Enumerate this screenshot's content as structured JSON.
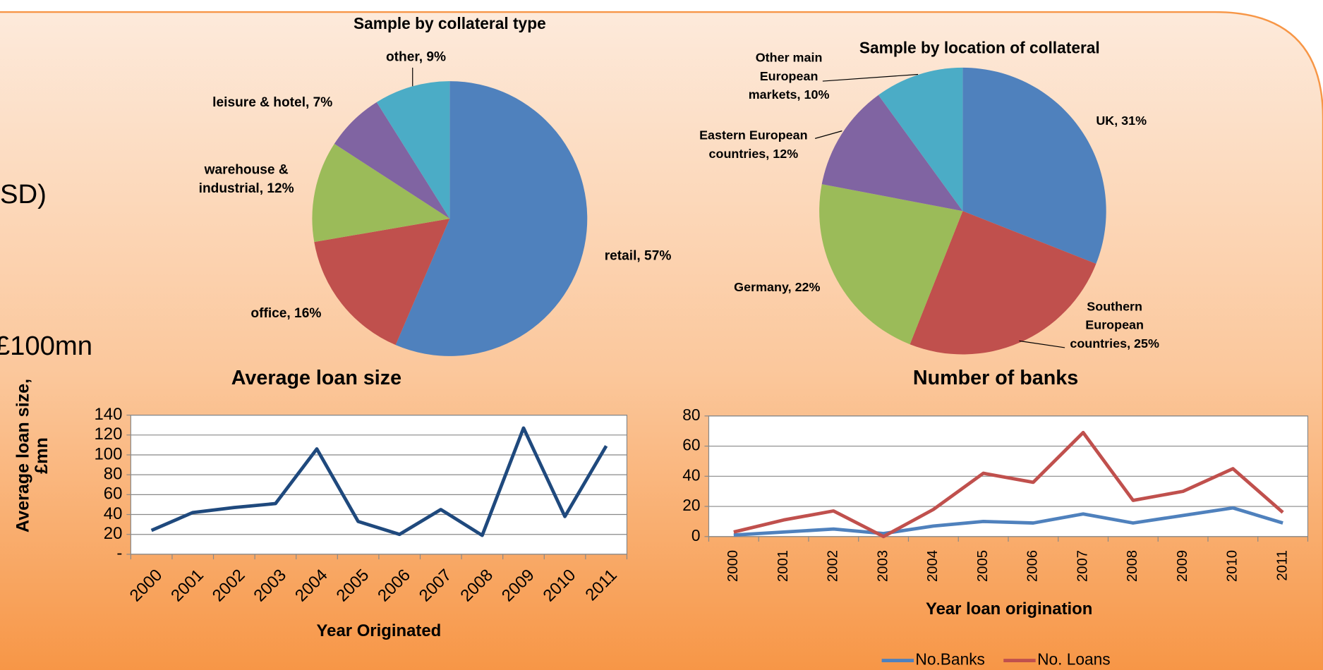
{
  "slide_text": [
    "SD)",
    "£100mn"
  ],
  "chart_data": [
    {
      "type": "pie",
      "title": "Sample by collateral type",
      "labels": [
        "retail, 57%",
        "office,  16%",
        "warehouse & industrial,  12%",
        "leisure & hotel, 7%",
        "other, 9%"
      ],
      "values": [
        57,
        16,
        12,
        7,
        9
      ],
      "colors": [
        "#4f81bd",
        "#c0504d",
        "#9bbb59",
        "#8064a2",
        "#4bacc6"
      ]
    },
    {
      "type": "pie",
      "title": "Sample by location of collateral",
      "labels": [
        "UK, 31%",
        "Southern European countries, 25%",
        "Germany, 22%",
        "Eastern European countries, 12%",
        "Other main European markets, 10%"
      ],
      "values": [
        31,
        25,
        22,
        12,
        10
      ],
      "colors": [
        "#4f81bd",
        "#c0504d",
        "#9bbb59",
        "#8064a2",
        "#4bacc6"
      ]
    },
    {
      "type": "line",
      "title": "Average loan size",
      "x_label": "Year Originated",
      "y_label": "Average loan size, £mn",
      "categories": [
        "2000",
        "2001",
        "2002",
        "2003",
        "2004",
        "2005",
        "2006",
        "2007",
        "2008",
        "2009",
        "2010",
        "2011"
      ],
      "series": [
        {
          "color": "#1f497d",
          "values": [
            24,
            42,
            47,
            51,
            106,
            33,
            20,
            45,
            19,
            127,
            38,
            109
          ]
        }
      ],
      "ylim": [
        0,
        140
      ],
      "yticks": [
        {
          "value": 0,
          "label": "-"
        },
        20,
        40,
        60,
        80,
        100,
        120,
        140
      ],
      "grid": true
    },
    {
      "type": "line",
      "title": "Number of banks",
      "x_label": "Year loan origination",
      "categories": [
        "2000",
        "2001",
        "2002",
        "2003",
        "2004",
        "2005",
        "2006",
        "2007",
        "2008",
        "2009",
        "2010",
        "2011"
      ],
      "series": [
        {
          "name": "No.Banks",
          "color": "#4f81bd",
          "values": [
            1,
            3,
            5,
            2,
            7,
            10,
            9,
            15,
            9,
            14,
            19,
            9
          ]
        },
        {
          "name": "No. Loans",
          "color": "#c0504d",
          "values": [
            3,
            11,
            17,
            0,
            18,
            42,
            36,
            69,
            24,
            30,
            45,
            16
          ]
        }
      ],
      "ylim": [
        0,
        80
      ],
      "yticks": [
        0,
        20,
        40,
        60,
        80
      ],
      "grid": true,
      "legend": "bottom"
    }
  ]
}
